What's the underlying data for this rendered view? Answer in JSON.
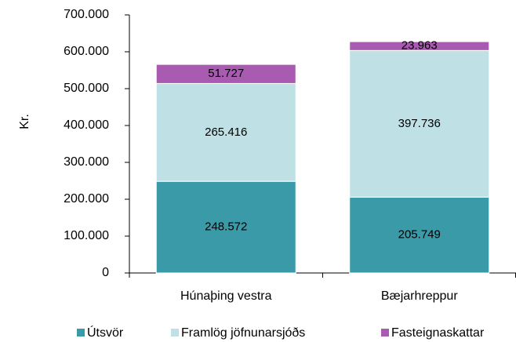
{
  "chart_data": {
    "type": "stacked_bar",
    "y_label": "Kr.",
    "categories": [
      "Húnaþing vestra",
      "Bæjarhreppur"
    ],
    "series": [
      {
        "name": "Útsvör",
        "color": "#3a9aa8",
        "values": [
          248572,
          205749
        ],
        "value_labels": [
          "248.572",
          "205.749"
        ]
      },
      {
        "name": "Framlög jöfnunarsjóðs",
        "color": "#bfe0e5",
        "values": [
          265416,
          397736
        ],
        "value_labels": [
          "265.416",
          "397.736"
        ]
      },
      {
        "name": "Fasteignaskattar",
        "color": "#a85bb0",
        "values": [
          51727,
          23963
        ],
        "value_labels": [
          "51.727",
          "23.963"
        ]
      }
    ],
    "ylim": [
      0,
      700000
    ],
    "yticks": [
      0,
      {
        "value": 100000,
        "label": "100.000"
      },
      {
        "value": 200000,
        "label": "200.000"
      },
      {
        "value": 300000,
        "label": "300.000"
      },
      {
        "value": 400000,
        "label": "400.000"
      },
      {
        "value": 500000,
        "label": "500.000"
      },
      {
        "value": 600000,
        "label": "600.000"
      },
      {
        "value": 700000,
        "label": "700.000"
      }
    ],
    "legend": "bottom"
  }
}
